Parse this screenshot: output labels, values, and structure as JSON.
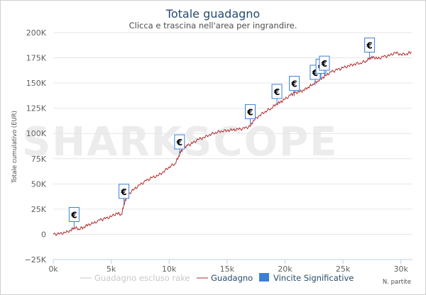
{
  "chart_data": {
    "type": "line",
    "title": "Totale guadagno",
    "subtitle": "Clicca e trascina nell'area per ingrandire.",
    "ylabel": "Totale cumulativo (EUR)",
    "xlabel": "N. partite",
    "xlim": [
      0,
      31000
    ],
    "ylim": [
      -25000,
      200000
    ],
    "x_ticks": [
      0,
      5000,
      10000,
      15000,
      20000,
      25000,
      30000
    ],
    "x_tick_labels": [
      "0k",
      "5k",
      "10k",
      "15k",
      "20k",
      "25k",
      "30k"
    ],
    "y_ticks": [
      -25000,
      0,
      25000,
      50000,
      75000,
      100000,
      125000,
      150000,
      175000,
      200000
    ],
    "y_tick_labels": [
      "−25K",
      "0",
      "25K",
      "50K",
      "75K",
      "100K",
      "125K",
      "150K",
      "175K",
      "200K"
    ],
    "grid": true,
    "legend_position": "bottom",
    "watermark": "SHARKSCOPE",
    "series": [
      {
        "name": "Guadagno escluso rake",
        "color": "#c8c8c8",
        "visible": false,
        "x": [],
        "y": []
      },
      {
        "name": "Guadagno",
        "color": "#b22b2b",
        "visible": true,
        "x": [
          0,
          500,
          1000,
          1500,
          1800,
          2200,
          2600,
          3000,
          3500,
          4000,
          4500,
          5000,
          5500,
          5900,
          6100,
          6300,
          6500,
          7000,
          7500,
          8000,
          8500,
          9000,
          9500,
          10000,
          10500,
          10800,
          11000,
          11300,
          11600,
          12000,
          12500,
          13000,
          13500,
          14000,
          14500,
          15000,
          15500,
          16000,
          16500,
          17000,
          17300,
          17800,
          18300,
          18800,
          19200,
          19600,
          20000,
          20500,
          20800,
          21200,
          21600,
          22000,
          22400,
          22800,
          23200,
          23600,
          24000,
          24500,
          25000,
          25500,
          26000,
          26500,
          27000,
          27300,
          27600,
          28000,
          28500,
          29000,
          29500,
          30000,
          30500,
          30900
        ],
        "y": [
          0,
          300,
          1500,
          4000,
          7000,
          5500,
          7000,
          9500,
          11000,
          14000,
          15500,
          17500,
          21000,
          19500,
          30000,
          36000,
          40000,
          45000,
          49000,
          53000,
          56000,
          58000,
          62000,
          67000,
          70000,
          77000,
          82000,
          86000,
          88000,
          90000,
          94000,
          96000,
          99000,
          101000,
          102500,
          103000,
          103500,
          104000,
          105000,
          107000,
          113000,
          118000,
          122000,
          125000,
          129000,
          131000,
          134000,
          138000,
          140000,
          141000,
          143000,
          146000,
          149000,
          152000,
          155000,
          158000,
          161000,
          163000,
          165000,
          167000,
          169000,
          170000,
          172000,
          175000,
          175500,
          174000,
          176000,
          177000,
          180000,
          178500,
          179000,
          181000
        ]
      }
    ],
    "flag_series": {
      "name": "Vincite Significative",
      "color": "#3d7fd6",
      "marker_label": "€",
      "points": [
        {
          "x": 1800,
          "y": 7000
        },
        {
          "x": 6100,
          "y": 30000
        },
        {
          "x": 10900,
          "y": 79000
        },
        {
          "x": 17000,
          "y": 109000
        },
        {
          "x": 19300,
          "y": 129000
        },
        {
          "x": 20800,
          "y": 137000
        },
        {
          "x": 22600,
          "y": 148000
        },
        {
          "x": 23100,
          "y": 154000
        },
        {
          "x": 23400,
          "y": 157000
        },
        {
          "x": 27300,
          "y": 175000
        }
      ]
    }
  }
}
